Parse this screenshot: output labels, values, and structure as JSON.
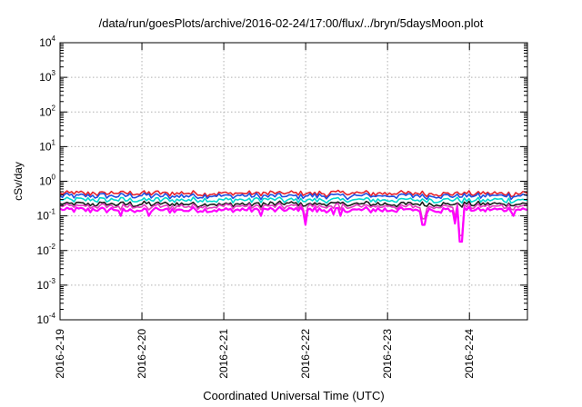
{
  "title": "/data/run/goesPlots/archive/2016-02-24/17:00/flux/../bryn/5daysMoon.plot",
  "xlabel": "Coordinated Universal Time (UTC)",
  "ylabel": "cSv/day",
  "chart_data": {
    "type": "line",
    "title": "/data/run/goesPlots/archive/2016-02-24/17:00/flux/../bryn/5daysMoon.plot",
    "xlabel": "Coordinated Universal Time (UTC)",
    "ylabel": "cSv/day",
    "yscale": "log",
    "ylim": [
      0.0001,
      10000
    ],
    "xlim": [
      "2016-02-19",
      "2016-02-24T17:00"
    ],
    "grid": true,
    "y_ticks": [
      {
        "base": "10",
        "exp": "-4"
      },
      {
        "base": "10",
        "exp": "-3"
      },
      {
        "base": "10",
        "exp": "-2"
      },
      {
        "base": "10",
        "exp": "-1"
      },
      {
        "base": "10",
        "exp": "0"
      },
      {
        "base": "10",
        "exp": "1"
      },
      {
        "base": "10",
        "exp": "2"
      },
      {
        "base": "10",
        "exp": "3"
      },
      {
        "base": "10",
        "exp": "4"
      }
    ],
    "x_ticks": [
      "2016-2-19",
      "2016-2-20",
      "2016-2-21",
      "2016-2-22",
      "2016-2-23",
      "2016-2-24"
    ],
    "series": [
      {
        "color": "#e8202a",
        "baseline": 0.45
      },
      {
        "color": "#1f4fe0",
        "baseline": 0.38
      },
      {
        "color": "#00d8d0",
        "baseline": 0.29
      },
      {
        "color": "#1a1a1a",
        "baseline": 0.22
      },
      {
        "color": "#e040c0",
        "baseline": 0.19
      },
      {
        "color": "#ff00ff",
        "baseline": 0.15
      }
    ],
    "dips": [
      {
        "x": "2016-02-22T00:00",
        "value": 0.055
      },
      {
        "x": "2016-02-23T10:30",
        "value": 0.055
      },
      {
        "x": "2016-02-23T20:00",
        "value": 0.06
      },
      {
        "x": "2016-02-23T21:30",
        "value": 0.018
      },
      {
        "x": "2016-02-22T10:00",
        "value": 0.1
      },
      {
        "x": "2016-02-22T08:00",
        "value": 0.11
      },
      {
        "x": "2016-02-21T11:00",
        "value": 0.1
      },
      {
        "x": "2016-02-19T18:00",
        "value": 0.1
      },
      {
        "x": "2016-02-20T02:00",
        "value": 0.1
      },
      {
        "x": "2016-02-24T13:00",
        "value": 0.1
      }
    ]
  }
}
